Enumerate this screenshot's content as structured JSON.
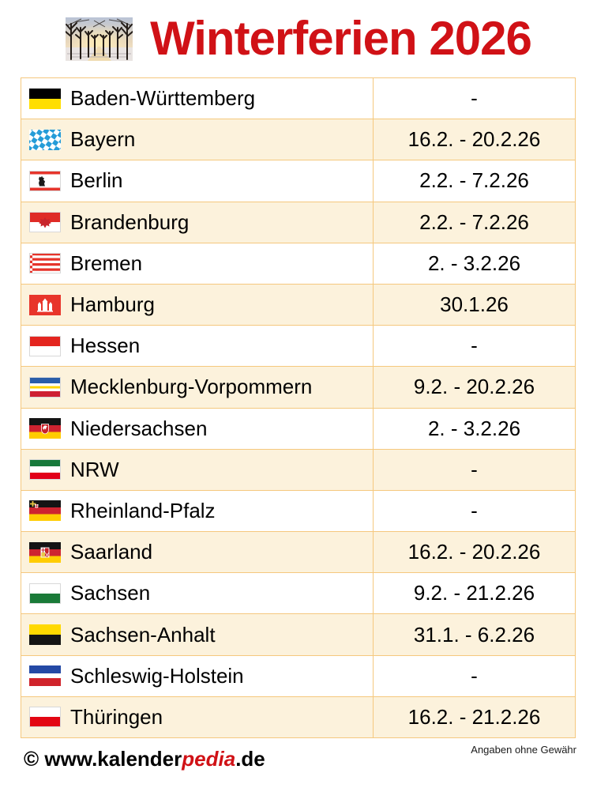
{
  "header": {
    "title": "Winterferien 2026",
    "photo": "winter-tree-avenue-photo"
  },
  "table": {
    "rows": [
      {
        "state": "Baden-Württemberg",
        "dates": "-",
        "flag": "flag-baden-wuerttemberg"
      },
      {
        "state": "Bayern",
        "dates": "16.2. - 20.2.26",
        "flag": "flag-bayern"
      },
      {
        "state": "Berlin",
        "dates": "2.2. - 7.2.26",
        "flag": "flag-berlin"
      },
      {
        "state": "Brandenburg",
        "dates": "2.2. - 7.2.26",
        "flag": "flag-brandenburg"
      },
      {
        "state": "Bremen",
        "dates": "2. - 3.2.26",
        "flag": "flag-bremen"
      },
      {
        "state": "Hamburg",
        "dates": "30.1.26",
        "flag": "flag-hamburg"
      },
      {
        "state": "Hessen",
        "dates": "-",
        "flag": "flag-hessen"
      },
      {
        "state": "Mecklenburg-Vorpommern",
        "dates": "9.2. - 20.2.26",
        "flag": "flag-mecklenburg-vorpommern"
      },
      {
        "state": "Niedersachsen",
        "dates": "2. - 3.2.26",
        "flag": "flag-niedersachsen"
      },
      {
        "state": "NRW",
        "dates": "-",
        "flag": "flag-nrw"
      },
      {
        "state": "Rheinland-Pfalz",
        "dates": "-",
        "flag": "flag-rheinland-pfalz"
      },
      {
        "state": "Saarland",
        "dates": "16.2. - 20.2.26",
        "flag": "flag-saarland"
      },
      {
        "state": "Sachsen",
        "dates": "9.2. - 21.2.26",
        "flag": "flag-sachsen"
      },
      {
        "state": "Sachsen-Anhalt",
        "dates": "31.1. - 6.2.26",
        "flag": "flag-sachsen-anhalt"
      },
      {
        "state": "Schleswig-Holstein",
        "dates": "-",
        "flag": "flag-schleswig-holstein"
      },
      {
        "state": "Thüringen",
        "dates": "16.2. - 21.2.26",
        "flag": "flag-thueringen"
      }
    ]
  },
  "footer": {
    "credit_prefix": "© www.kalender",
    "credit_highlight": "pedia",
    "credit_suffix": ".de",
    "disclaimer": "Angaben ohne Gewähr"
  },
  "colors": {
    "accent_red": "#D01116",
    "table_border": "#F5C87E",
    "row_alternate": "#FCF2DC"
  }
}
